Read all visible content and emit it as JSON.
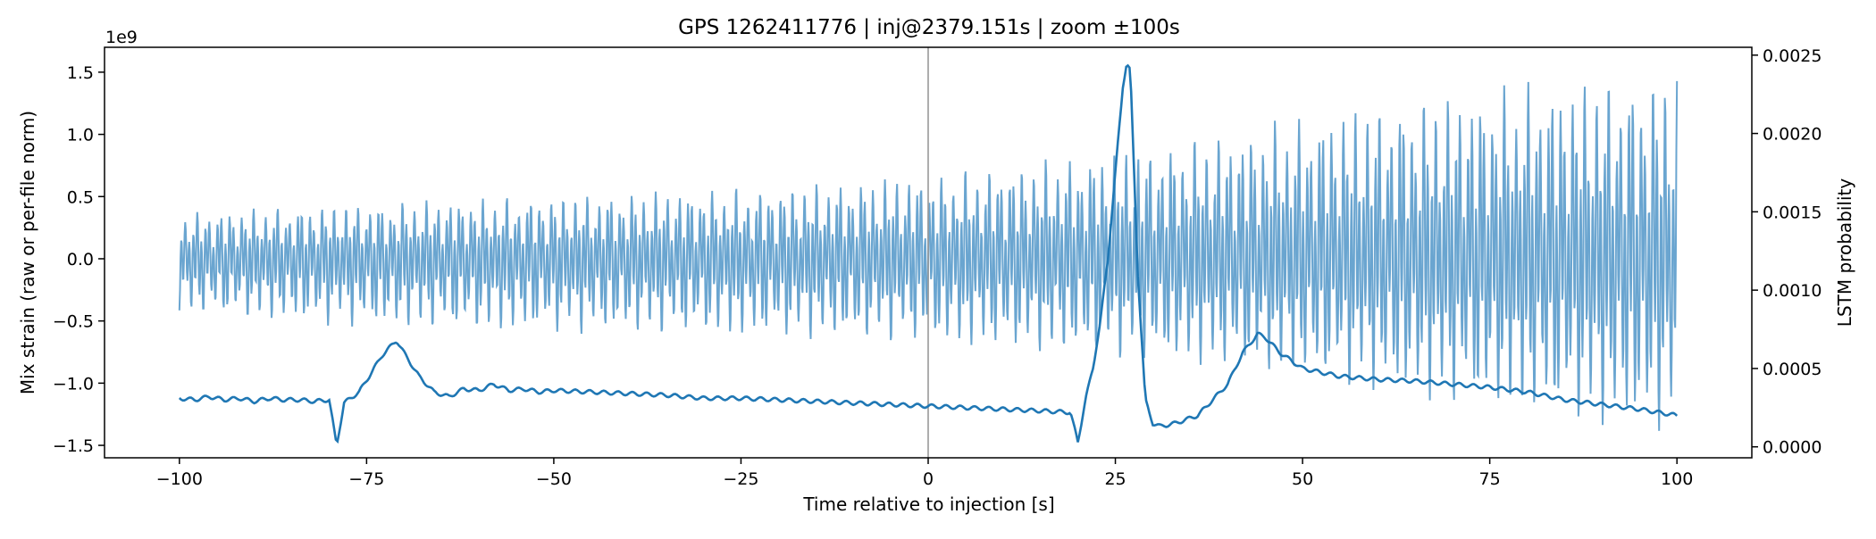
{
  "chart_data": {
    "type": "line",
    "title": "GPS 1262411776 | inj@2379.151s | zoom ±100s",
    "xlabel": "Time relative to injection [s]",
    "ylabel_left": "Mix strain (raw or per-file norm)",
    "ylabel_right": "LSTM probability",
    "left_offset_label": "1e9",
    "xlim": [
      -110,
      110
    ],
    "ylim_left": [
      -1.6,
      1.7
    ],
    "ylim_right": [
      -7e-05,
      0.00255
    ],
    "x_ticks": [
      -100,
      -75,
      -50,
      -25,
      0,
      25,
      50,
      75,
      100
    ],
    "x_tick_labels": [
      "−100",
      "−75",
      "−50",
      "−25",
      "0",
      "25",
      "50",
      "75",
      "100"
    ],
    "left_ticks": [
      -1.5,
      -1.0,
      -0.5,
      0.0,
      0.5,
      1.0,
      1.5
    ],
    "left_tick_labels": [
      "−1.5",
      "−1.0",
      "−0.5",
      "0.0",
      "0.5",
      "1.0",
      "1.5"
    ],
    "right_ticks": [
      0.0,
      0.0005,
      0.001,
      0.0015,
      0.002,
      0.0025
    ],
    "right_tick_labels": [
      "0.0000",
      "0.0005",
      "0.0010",
      "0.0015",
      "0.0020",
      "0.0025"
    ],
    "injection_line_x": 0,
    "series": [
      {
        "name": "Mix strain",
        "axis": "left",
        "color": "#5a9bcb",
        "envelope_x": [
          -100,
          -80,
          -60,
          -40,
          -20,
          0,
          20,
          40,
          60,
          80,
          100
        ],
        "envelope_max": [
          0.38,
          0.45,
          0.5,
          0.55,
          0.6,
          0.7,
          0.85,
          1.05,
          1.3,
          1.45,
          1.55
        ],
        "envelope_min": [
          -0.45,
          -0.55,
          -0.6,
          -0.62,
          -0.65,
          -0.7,
          -0.8,
          -0.9,
          -1.1,
          -1.3,
          -1.45
        ]
      },
      {
        "name": "LSTM probability",
        "axis": "right",
        "color": "#1f77b4",
        "x": [
          -100,
          -98,
          -96,
          -94,
          -92,
          -90,
          -88,
          -86,
          -84,
          -82,
          -80,
          -79,
          -78,
          -76,
          -74,
          -73,
          -72,
          -71,
          -70,
          -68,
          -66,
          -64,
          -62,
          -60,
          -58,
          -56,
          -54,
          -52,
          -50,
          -45,
          -40,
          -35,
          -30,
          -25,
          -20,
          -15,
          -10,
          -5,
          0,
          5,
          10,
          15,
          19,
          20,
          21,
          22,
          23,
          24,
          25,
          26,
          26.5,
          27,
          28,
          29,
          30,
          31,
          33,
          36,
          40,
          42,
          44,
          45,
          47,
          50,
          55,
          60,
          65,
          70,
          75,
          80,
          85,
          90,
          95,
          100
        ],
        "values": [
          0.00031,
          0.0003,
          0.00032,
          0.0003,
          0.00031,
          0.00029,
          0.00031,
          0.0003,
          0.0003,
          0.00029,
          0.0003,
          1e-05,
          0.00028,
          0.00035,
          0.0005,
          0.00058,
          0.00063,
          0.00068,
          0.0006,
          0.00045,
          0.00035,
          0.00032,
          0.00037,
          0.00036,
          0.0004,
          0.00036,
          0.00037,
          0.00035,
          0.00036,
          0.00035,
          0.00034,
          0.00033,
          0.00031,
          0.00031,
          0.0003,
          0.00029,
          0.00028,
          0.00027,
          0.00026,
          0.00025,
          0.00024,
          0.00023,
          0.00022,
          3e-05,
          0.0003,
          0.0005,
          0.0008,
          0.0012,
          0.00175,
          0.0023,
          0.00245,
          0.0024,
          0.0011,
          0.0003,
          0.00015,
          0.00013,
          0.00015,
          0.0002,
          0.0004,
          0.0006,
          0.00072,
          0.0007,
          0.0006,
          0.0005,
          0.00045,
          0.00043,
          0.00042,
          0.0004,
          0.00038,
          0.00035,
          0.0003,
          0.00027,
          0.00024,
          0.0002
        ]
      }
    ]
  }
}
